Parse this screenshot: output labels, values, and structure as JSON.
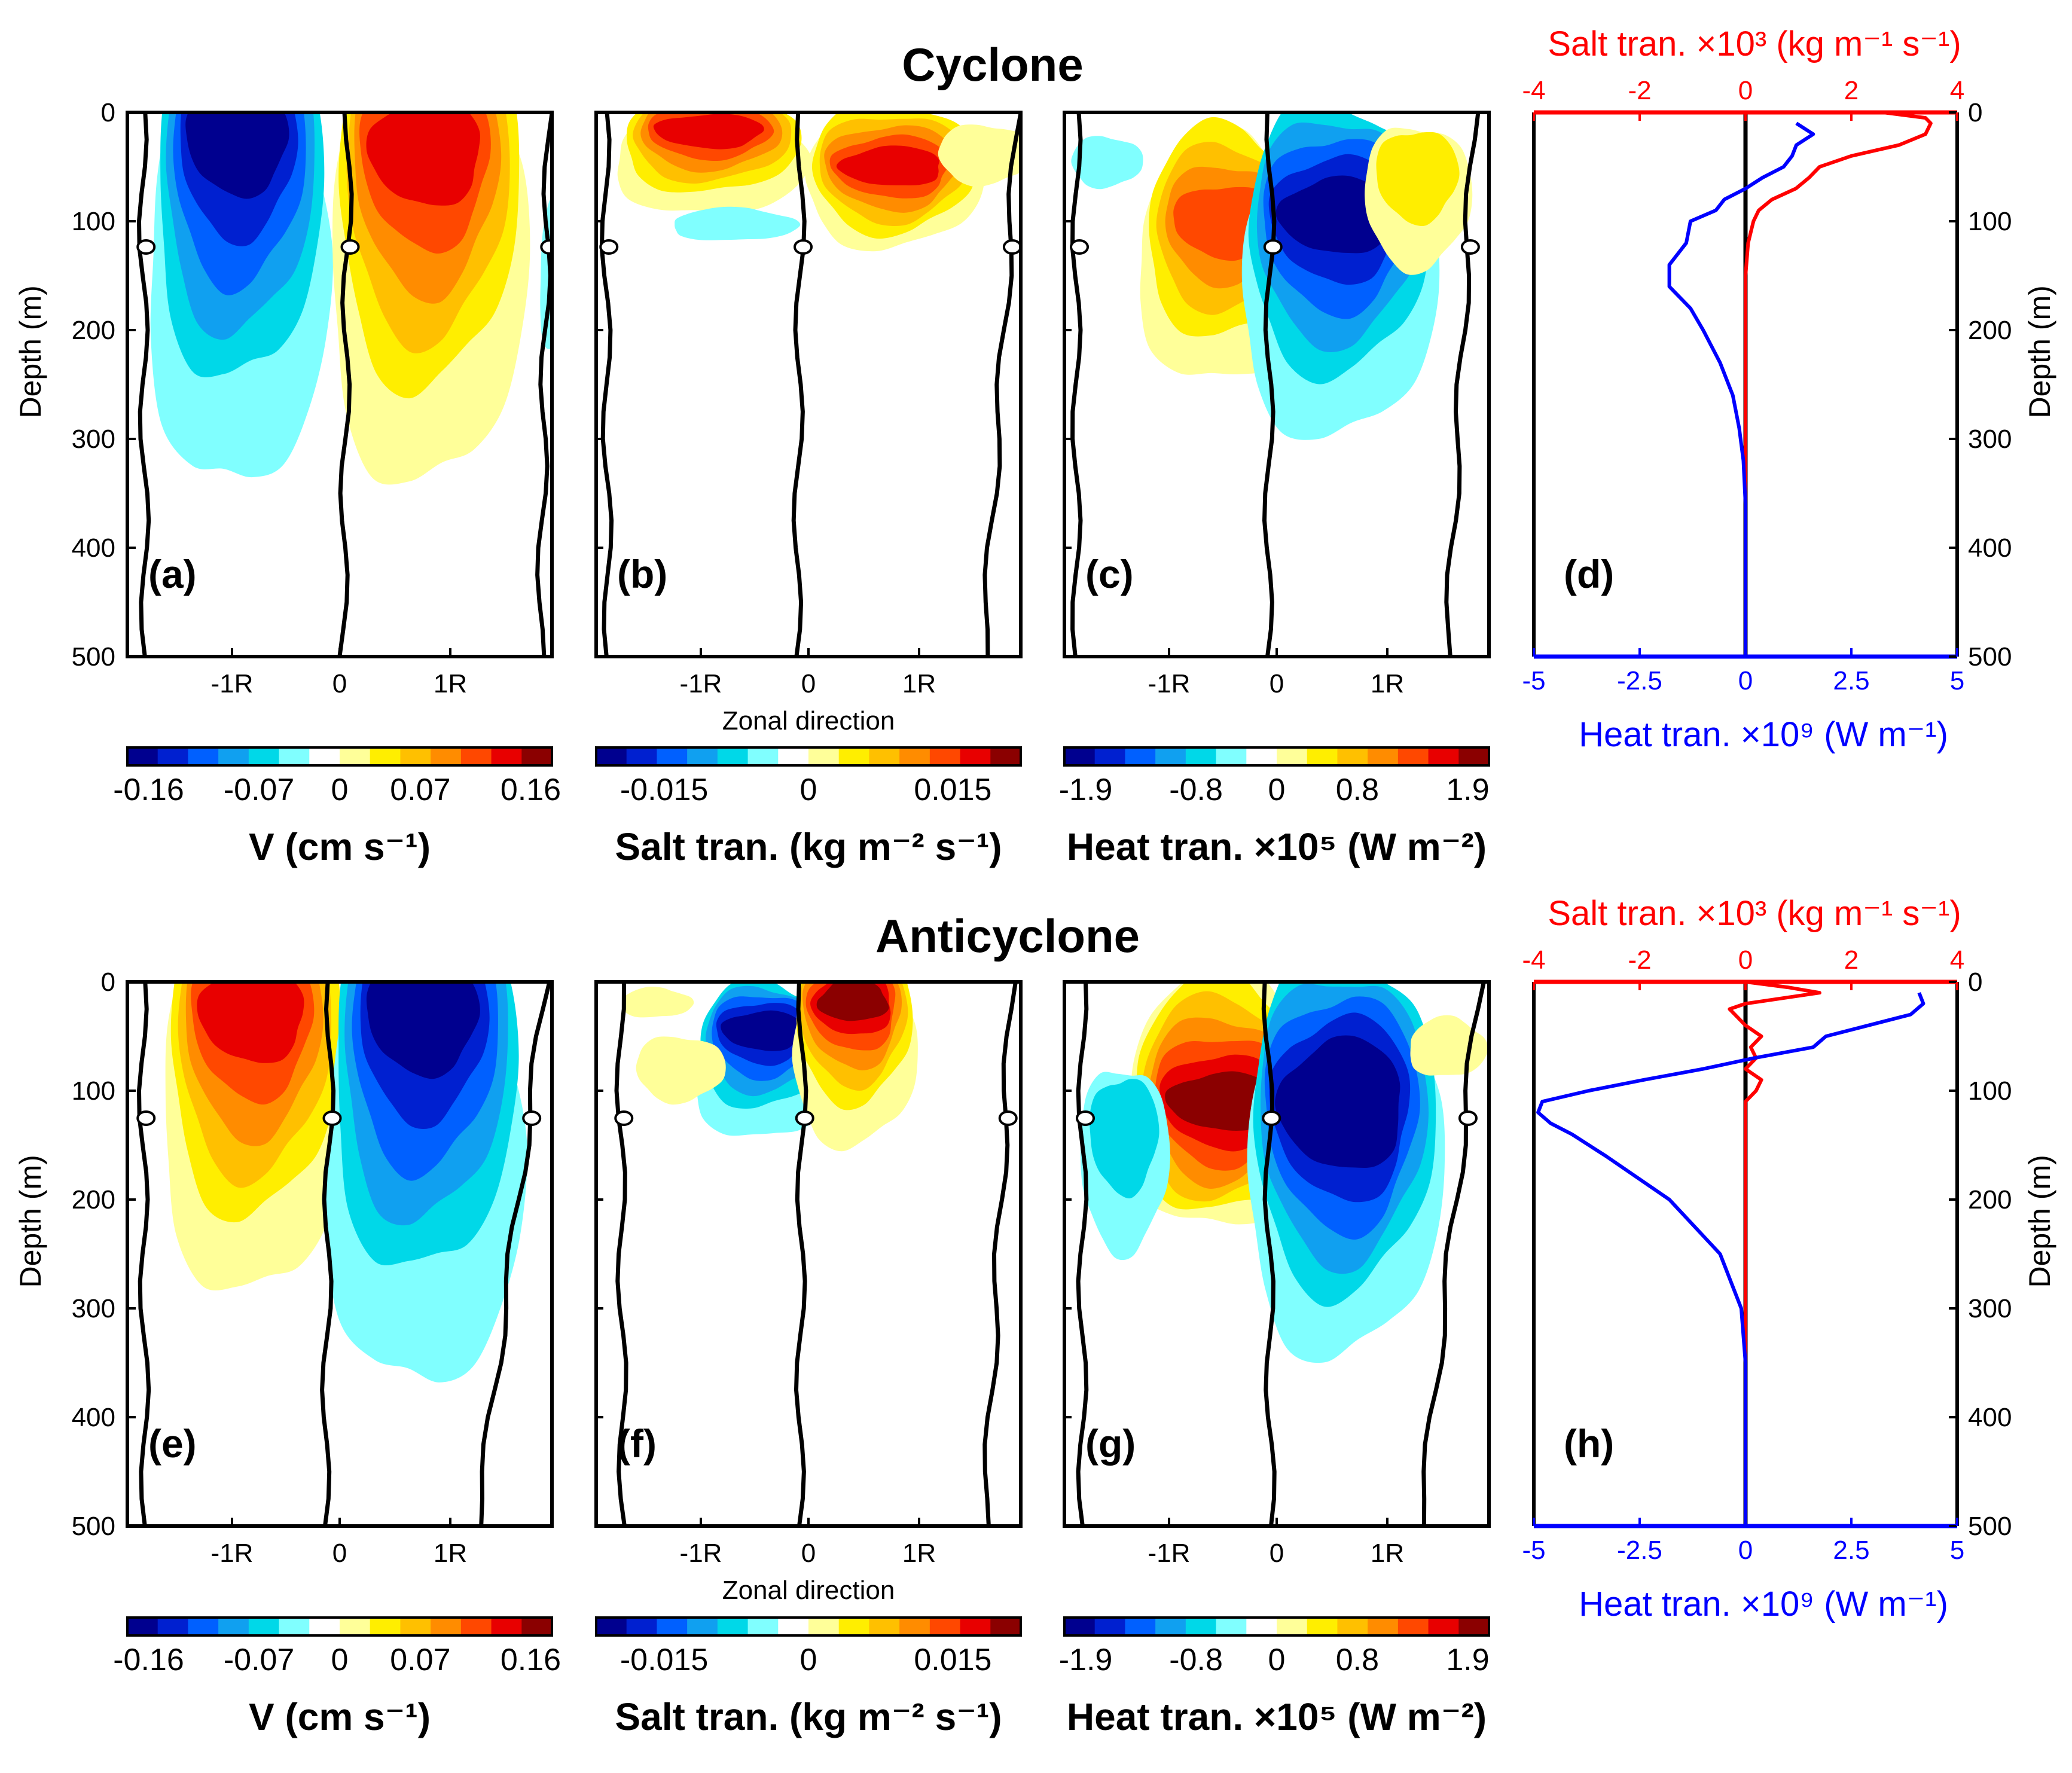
{
  "figure": {
    "rows": [
      {
        "title": "Cyclone",
        "panels": [
          {
            "label": "(a)",
            "field": "V"
          },
          {
            "label": "(b)",
            "field": "salt"
          },
          {
            "label": "(c)",
            "field": "heat"
          },
          {
            "label": "(d)",
            "field": "profile"
          }
        ]
      },
      {
        "title": "Anticyclone",
        "panels": [
          {
            "label": "(e)",
            "field": "V"
          },
          {
            "label": "(f)",
            "field": "salt"
          },
          {
            "label": "(g)",
            "field": "heat"
          },
          {
            "label": "(h)",
            "field": "profile"
          }
        ]
      }
    ],
    "depth_label": "Depth (m)",
    "depth_ticks": [
      "0",
      "100",
      "200",
      "300",
      "400",
      "500"
    ],
    "zonal_label": "Zonal direction",
    "zonal_ticks": [
      "-1R",
      "0",
      "1R"
    ],
    "zero_contour_label": "0",
    "colorbars": [
      {
        "ticks": [
          "-0.16",
          "-0.07",
          "0",
          "0.07",
          "0.16"
        ],
        "label": "V (cm s⁻¹)"
      },
      {
        "ticks": [
          "-0.015",
          "0",
          "0.015"
        ],
        "label": "Salt tran. (kg m⁻² s⁻¹)"
      },
      {
        "ticks": [
          "-1.9",
          "-0.8",
          "0",
          "0.8",
          "1.9"
        ],
        "label": "Heat tran. ×10⁵ (W m⁻²)"
      }
    ],
    "colors": {
      "scale": [
        "#00008f",
        "#0020d0",
        "#0060ff",
        "#10a0f0",
        "#00d8e8",
        "#80ffff",
        "#ffffff",
        "#ffff99",
        "#ffee00",
        "#ffc000",
        "#ff8c00",
        "#ff4800",
        "#e80000",
        "#8b0000"
      ],
      "salt_axis": "#ff0000",
      "heat_axis": "#0000ff"
    },
    "profile_axes": {
      "salt_label": "Salt tran. ×10³ (kg m⁻¹ s⁻¹)",
      "salt_ticks": [
        "-4",
        "-2",
        "0",
        "2",
        "4"
      ],
      "heat_label": "Heat tran. ×10⁹ (W m⁻¹)",
      "heat_ticks": [
        "-5",
        "-2.5",
        "0",
        "2.5",
        "5"
      ]
    }
  },
  "chart_data": [
    {
      "type": "line",
      "title": "Cyclone (d)",
      "ylabel": "Depth (m)",
      "ylim": [
        500,
        0
      ],
      "series": [
        {
          "name": "Salt tran. ×10³ (kg m⁻¹ s⁻¹)",
          "axis": "top",
          "xlim": [
            -4,
            4
          ],
          "color": "#ff0000",
          "depth": [
            0,
            5,
            10,
            20,
            30,
            40,
            50,
            60,
            70,
            80,
            90,
            100,
            120,
            150,
            200,
            300,
            400,
            500
          ],
          "values": [
            2.6,
            3.4,
            3.5,
            3.4,
            2.9,
            2.0,
            1.4,
            1.2,
            0.95,
            0.5,
            0.25,
            0.15,
            0.05,
            0.0,
            0.0,
            0.0,
            0.0,
            0.0
          ]
        },
        {
          "name": "Heat tran. ×10⁹ (W m⁻¹)",
          "axis": "bottom",
          "xlim": [
            -5,
            5
          ],
          "color": "#0000ff",
          "depth": [
            10,
            20,
            30,
            40,
            50,
            60,
            70,
            80,
            90,
            100,
            120,
            140,
            160,
            180,
            200,
            230,
            260,
            290,
            320,
            360,
            400,
            450,
            500
          ],
          "values": [
            1.2,
            1.6,
            1.2,
            1.1,
            0.9,
            0.4,
            0.0,
            -0.5,
            -0.7,
            -1.3,
            -1.4,
            -1.8,
            -1.8,
            -1.3,
            -1.0,
            -0.6,
            -0.3,
            -0.15,
            -0.05,
            0.0,
            0.0,
            0.0,
            0.0
          ]
        }
      ]
    },
    {
      "type": "line",
      "title": "Anticyclone (h)",
      "ylabel": "Depth (m)",
      "ylim": [
        500,
        0
      ],
      "series": [
        {
          "name": "Salt tran. ×10³ (kg m⁻¹ s⁻¹)",
          "axis": "top",
          "xlim": [
            -4,
            4
          ],
          "color": "#ff0000",
          "depth": [
            0,
            5,
            10,
            15,
            20,
            25,
            30,
            40,
            50,
            60,
            70,
            80,
            90,
            100,
            110,
            120,
            140,
            200,
            300,
            400,
            500
          ],
          "values": [
            0.0,
            0.8,
            1.4,
            0.7,
            0.0,
            -0.3,
            -0.2,
            0.0,
            0.3,
            0.1,
            0.2,
            0.0,
            0.3,
            0.2,
            0.0,
            0.0,
            0.0,
            0.0,
            0.0,
            0.0,
            0.0
          ]
        },
        {
          "name": "Heat tran. ×10⁹ (W m⁻¹)",
          "axis": "bottom",
          "xlim": [
            -5,
            5
          ],
          "color": "#0000ff",
          "depth": [
            10,
            20,
            30,
            40,
            50,
            60,
            70,
            80,
            90,
            100,
            110,
            120,
            130,
            140,
            160,
            200,
            250,
            300,
            350,
            400,
            450,
            500
          ],
          "values": [
            4.1,
            4.2,
            3.9,
            2.9,
            1.9,
            1.6,
            0.2,
            -1.0,
            -2.4,
            -3.7,
            -4.8,
            -4.9,
            -4.6,
            -4.1,
            -3.3,
            -1.8,
            -0.6,
            -0.1,
            0.0,
            0.0,
            0.0,
            0.0
          ]
        }
      ]
    },
    {
      "type": "heatmap",
      "title": "Cyclone contour sections (a)-(c)",
      "xlabel": "Zonal direction",
      "ylabel": "Depth (m)",
      "ylim": [
        500,
        0
      ],
      "panels": [
        {
          "label": "(a)",
          "quantity": "V (cm s⁻¹)",
          "range": [
            -0.16,
            0.16
          ],
          "cores": [
            {
              "x": "-1R",
              "depth": 30,
              "value": -0.16,
              "extent_depth": 350
            },
            {
              "x": "1R",
              "depth": 40,
              "value": 0.13,
              "extent_depth": 340
            }
          ]
        },
        {
          "label": "(b)",
          "quantity": "Salt tran. (kg m⁻² s⁻¹)",
          "range": [
            -0.015,
            0.015
          ],
          "cores": [
            {
              "x": "-1R",
              "depth": 20,
              "value": 0.013,
              "extent_depth": 90
            },
            {
              "x": "1R",
              "depth": 45,
              "value": 0.013,
              "extent_depth": 120
            }
          ]
        },
        {
          "label": "(c)",
          "quantity": "Heat tran. ×10⁵ (W m⁻²)",
          "range": [
            -1.9,
            1.9
          ],
          "cores": [
            {
              "x": "-1R",
              "depth": 90,
              "value": 1.3,
              "extent_depth": 250
            },
            {
              "x": "1R",
              "depth": 85,
              "value": -1.9,
              "extent_depth": 300
            }
          ]
        }
      ]
    },
    {
      "type": "heatmap",
      "title": "Anticyclone contour sections (e)-(g)",
      "xlabel": "Zonal direction",
      "ylabel": "Depth (m)",
      "ylim": [
        500,
        0
      ],
      "panels": [
        {
          "label": "(e)",
          "quantity": "V (cm s⁻¹)",
          "range": [
            -0.16,
            0.16
          ],
          "cores": [
            {
              "x": "-1R",
              "depth": 25,
              "value": 0.13,
              "extent_depth": 290
            },
            {
              "x": "1R",
              "depth": 30,
              "value": -0.13,
              "extent_depth": 380
            }
          ]
        },
        {
          "label": "(f)",
          "quantity": "Salt tran. (kg m⁻² s⁻¹)",
          "range": [
            -0.015,
            0.015
          ],
          "cores": [
            {
              "x": "-0.5R",
              "depth": 40,
              "value": -0.013,
              "extent_depth": 145
            },
            {
              "x": "0.5R",
              "depth": 15,
              "value": 0.015,
              "extent_depth": 150
            }
          ]
        },
        {
          "label": "(g)",
          "quantity": "Heat tran. ×10⁵ (W m⁻²)",
          "range": [
            -1.9,
            1.9
          ],
          "cores": [
            {
              "x": "-0.5R",
              "depth": 95,
              "value": 1.9,
              "extent_depth": 230
            },
            {
              "x": "0.5R",
              "depth": 90,
              "value": -1.9,
              "extent_depth": 345
            }
          ]
        }
      ]
    }
  ]
}
